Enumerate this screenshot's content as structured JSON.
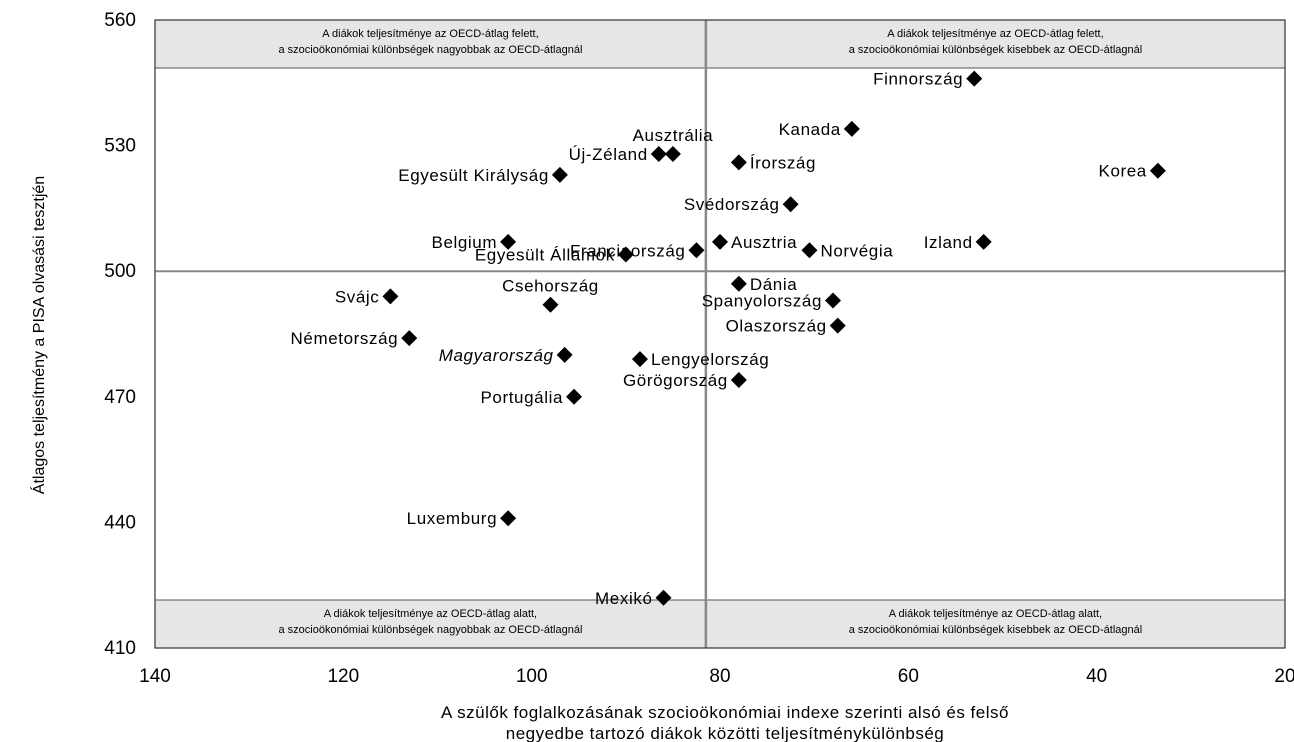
{
  "chart_data": {
    "type": "scatter",
    "title": "",
    "xlabel_line1": "A szülők foglalkozásának szocioökonómiai indexe szerinti alsó és felső",
    "xlabel_line2": "negyedbe tartozó diákok közötti teljesítménykülönbség",
    "ylabel": "Átlagos teljesítmény a PISA olvasási tesztjén",
    "xlim": [
      140,
      20
    ],
    "ylim": [
      410,
      560
    ],
    "xticks": [
      "140",
      "120",
      "100",
      "80",
      "60",
      "40",
      "20"
    ],
    "yticks": [
      "560",
      "530",
      "500",
      "470",
      "440",
      "410"
    ],
    "reference_x": 81.5,
    "reference_y": 500,
    "marker_color": "#000000",
    "quadrant_band_color": "#e6e6e6",
    "quadrant_labels": {
      "top_left": [
        "A diákok teljesítménye az OECD-átlag felett,",
        "a szocioökonómiai különbségek nagyobbak az OECD-átlagnál"
      ],
      "top_right": [
        "A diákok teljesítménye az OECD-átlag felett,",
        "a szocioökonómiai különbségek kisebbek az OECD-átlagnál"
      ],
      "bottom_left": [
        "A diákok teljesítménye az OECD-átlag alatt,",
        "a szocioökonómiai különbségek nagyobbak az OECD-átlagnál"
      ],
      "bottom_right": [
        "A diákok teljesítménye az OECD-átlag alatt,",
        "a szocioökonómiai különbségek kisebbek az OECD-átlagnál"
      ]
    },
    "points": [
      {
        "label": "Finnország",
        "x": 53,
        "y": 546,
        "anchor": "end",
        "italic": false
      },
      {
        "label": "Kanada",
        "x": 66,
        "y": 534,
        "anchor": "end",
        "italic": false
      },
      {
        "label": "Ausztrália",
        "x": 85,
        "y": 528,
        "anchor": "middle",
        "italic": false
      },
      {
        "label": "Új-Zéland",
        "x": 86.5,
        "y": 528,
        "anchor": "end",
        "italic": false
      },
      {
        "label": "Írország",
        "x": 78,
        "y": 526,
        "anchor": "start",
        "italic": false
      },
      {
        "label": "Korea",
        "x": 33.5,
        "y": 524,
        "anchor": "end",
        "italic": false
      },
      {
        "label": "Egyesült Királyság",
        "x": 97,
        "y": 523,
        "anchor": "end",
        "italic": false
      },
      {
        "label": "Svédország",
        "x": 72.5,
        "y": 516,
        "anchor": "end",
        "italic": false
      },
      {
        "label": "Belgium",
        "x": 102.5,
        "y": 507,
        "anchor": "end",
        "italic": false
      },
      {
        "label": "Franciaország",
        "x": 82.5,
        "y": 505,
        "anchor": "end",
        "italic": false
      },
      {
        "label": "Ausztria",
        "x": 80,
        "y": 507,
        "anchor": "start",
        "italic": false
      },
      {
        "label": "Izland",
        "x": 52,
        "y": 507,
        "anchor": "end",
        "italic": false
      },
      {
        "label": "Norvégia",
        "x": 70.5,
        "y": 505,
        "anchor": "start",
        "italic": false
      },
      {
        "label": "Egyesült Államok",
        "x": 90,
        "y": 504,
        "anchor": "end",
        "italic": false
      },
      {
        "label": "Dánia",
        "x": 78,
        "y": 497,
        "anchor": "start",
        "italic": false
      },
      {
        "label": "Svájc",
        "x": 115,
        "y": 494,
        "anchor": "end",
        "italic": false
      },
      {
        "label": "Spanyolország",
        "x": 68,
        "y": 493,
        "anchor": "end",
        "italic": false
      },
      {
        "label": "Csehország",
        "x": 98,
        "y": 492,
        "anchor": "middle",
        "italic": false
      },
      {
        "label": "Olaszország",
        "x": 67.5,
        "y": 487,
        "anchor": "end",
        "italic": false
      },
      {
        "label": "Németország",
        "x": 113,
        "y": 484,
        "anchor": "end",
        "italic": false
      },
      {
        "label": "Magyarország",
        "x": 96.5,
        "y": 480,
        "anchor": "end",
        "italic": true
      },
      {
        "label": "Lengyelország",
        "x": 88.5,
        "y": 479,
        "anchor": "start",
        "italic": false
      },
      {
        "label": "Görögország",
        "x": 78,
        "y": 474,
        "anchor": "end",
        "italic": false
      },
      {
        "label": "Portugália",
        "x": 95.5,
        "y": 470,
        "anchor": "end",
        "italic": false
      },
      {
        "label": "Luxemburg",
        "x": 102.5,
        "y": 441,
        "anchor": "end",
        "italic": false
      },
      {
        "label": "Mexikó",
        "x": 86,
        "y": 422,
        "anchor": "end",
        "italic": false
      }
    ]
  }
}
